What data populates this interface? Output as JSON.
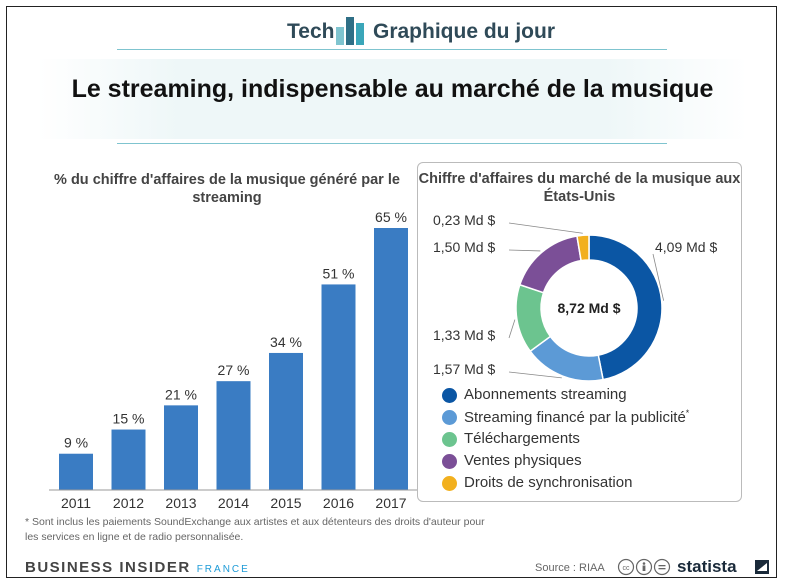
{
  "header": {
    "brand_left": "Tech",
    "brand_right": "Graphique du jour",
    "title": "Le streaming, indispensable au marché de la musique"
  },
  "bar_chart_title": "% du chiffre d'affaires de la musique généré par le streaming",
  "donut_chart_title": "Chiffre d'affaires du marché de la musique aux États-Unis",
  "legend": [
    {
      "label": "Abonnements streaming",
      "color": "#0b56a4"
    },
    {
      "label": "Streaming financé par la publicité",
      "sup": "*",
      "color": "#5c9ad6"
    },
    {
      "label": "Téléchargements",
      "color": "#6cc48f"
    },
    {
      "label": "Ventes physiques",
      "color": "#7b4f97"
    },
    {
      "label": "Droits de synchronisation",
      "color": "#f2b01e"
    }
  ],
  "footnote": "* Sont inclus les paiements SoundExchange aux artistes et aux détenteurs des droits d'auteur pour les services en ligne et de radio personnalisée.",
  "footer": {
    "brand": "BUSINESS INSIDER",
    "brand_edition": "FRANCE",
    "source": "Source : RIAA",
    "statista": "statista"
  },
  "colors": {
    "bar": "#3a7cc3",
    "header_text": "#2f4a58",
    "header_line": "#7fc4cf",
    "accent_teal": "#3aa6b9"
  },
  "chart_data": [
    {
      "type": "bar",
      "title": "% du chiffre d'affaires de la musique généré par le streaming",
      "categories": [
        "2011",
        "2012",
        "2013",
        "2014",
        "2015",
        "2016",
        "2017"
      ],
      "values": [
        9,
        15,
        21,
        27,
        34,
        51,
        65
      ],
      "labels": [
        "9 %",
        "15 %",
        "21 %",
        "27 %",
        "34 %",
        "51 %",
        "65 %"
      ],
      "ylim": [
        0,
        70
      ],
      "grid": false
    },
    {
      "type": "pie",
      "title": "Chiffre d'affaires du marché de la musique aux États-Unis",
      "center_label": "8,72 Md $",
      "categories": [
        "Abonnements streaming",
        "Streaming financé par la publicité",
        "Téléchargements",
        "Ventes physiques",
        "Droits de synchronisation"
      ],
      "values": [
        4.09,
        1.57,
        1.33,
        1.5,
        0.23
      ],
      "labels": [
        "4,09 Md $",
        "1,57 Md $",
        "1,33 Md $",
        "1,50 Md $",
        "0,23 Md $"
      ],
      "colors": [
        "#0b56a4",
        "#5c9ad6",
        "#6cc48f",
        "#7b4f97",
        "#f2b01e"
      ],
      "legend": "bottom"
    }
  ]
}
